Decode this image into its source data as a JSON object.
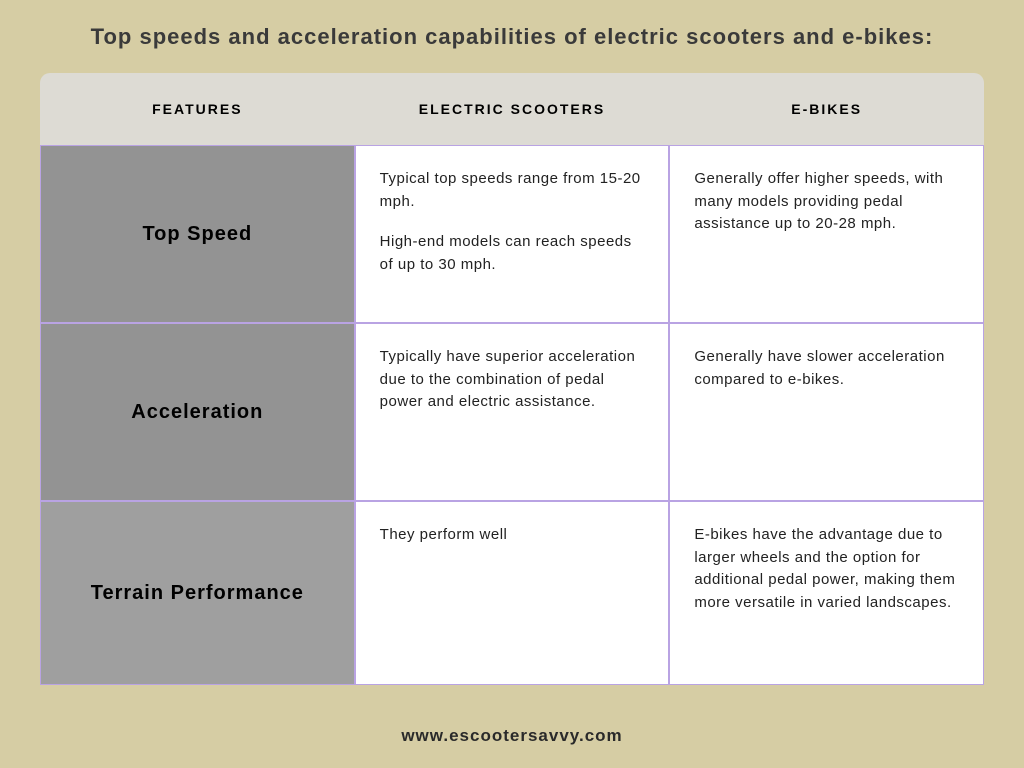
{
  "page": {
    "background_color": "#d6cda4",
    "title": "Top speeds and acceleration capabilities of electric scooters and e-bikes:",
    "footer": "www.escootersavvy.com"
  },
  "table": {
    "type": "table",
    "header_bg": "#dddbd4",
    "feature_col_bg": "#939393",
    "data_cell_bg": "#ffffff",
    "border_color": "#b9a3e3",
    "columns": [
      {
        "label": "FEATURES"
      },
      {
        "label": "ELECTRIC SCOOTERS"
      },
      {
        "label": "E-BIKES"
      }
    ],
    "rows": [
      {
        "feature": "Top Speed",
        "scooters_p1": "Typical top speeds range from 15-20 mph.",
        "scooters_p2": "High-end models can reach speeds of up to 30 mph.",
        "ebikes": "Generally offer higher speeds, with many models providing pedal assistance up to 20-28 mph."
      },
      {
        "feature": "Acceleration",
        "scooters_p1": "Typically have superior acceleration due to the combination of pedal power and electric assistance.",
        "scooters_p2": "",
        "ebikes": "Generally have slower acceleration compared to e-bikes."
      },
      {
        "feature": "Terrain Performance",
        "scooters_p1": "They perform well",
        "scooters_p2": "",
        "ebikes": "E-bikes have the advantage due to larger wheels and the option for additional pedal power, making them more versatile in varied landscapes."
      }
    ]
  }
}
